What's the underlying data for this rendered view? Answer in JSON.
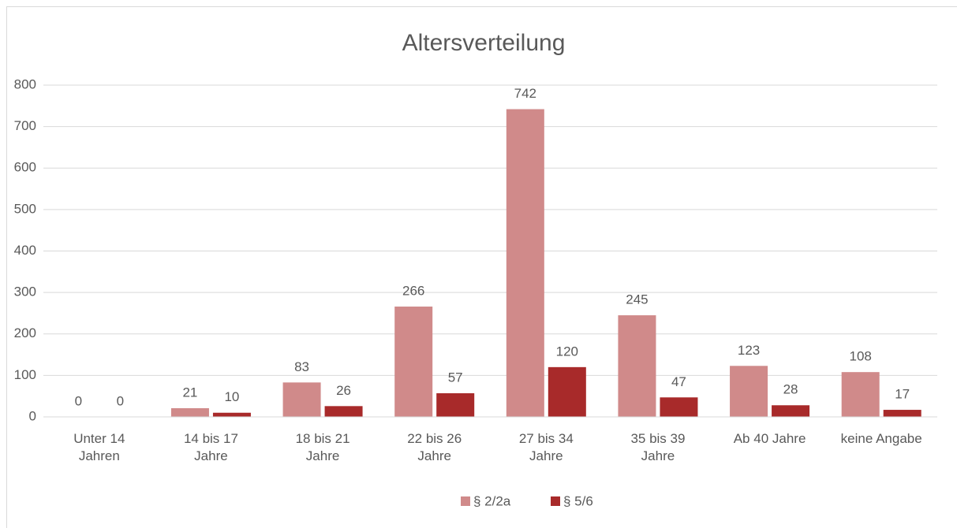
{
  "chart_data": {
    "type": "bar",
    "title": "Altersverteilung",
    "categories": [
      "Unter 14 Jahren",
      "14 bis 17 Jahre",
      "18 bis 21 Jahre",
      "22 bis 26 Jahre",
      "27 bis 34 Jahre",
      "35 bis 39 Jahre",
      "Ab 40 Jahre",
      "keine Angabe"
    ],
    "series": [
      {
        "name": "§ 2/2a",
        "color": "#d08a8a",
        "values": [
          0,
          21,
          83,
          266,
          742,
          245,
          123,
          108
        ]
      },
      {
        "name": "§ 5/6",
        "color": "#a82a2a",
        "values": [
          0,
          10,
          26,
          57,
          120,
          47,
          28,
          17
        ]
      }
    ],
    "ylim": [
      0,
      800
    ],
    "yticks": [
      0,
      100,
      200,
      300,
      400,
      500,
      600,
      700,
      800
    ],
    "grid": true,
    "legend": "bottom"
  }
}
